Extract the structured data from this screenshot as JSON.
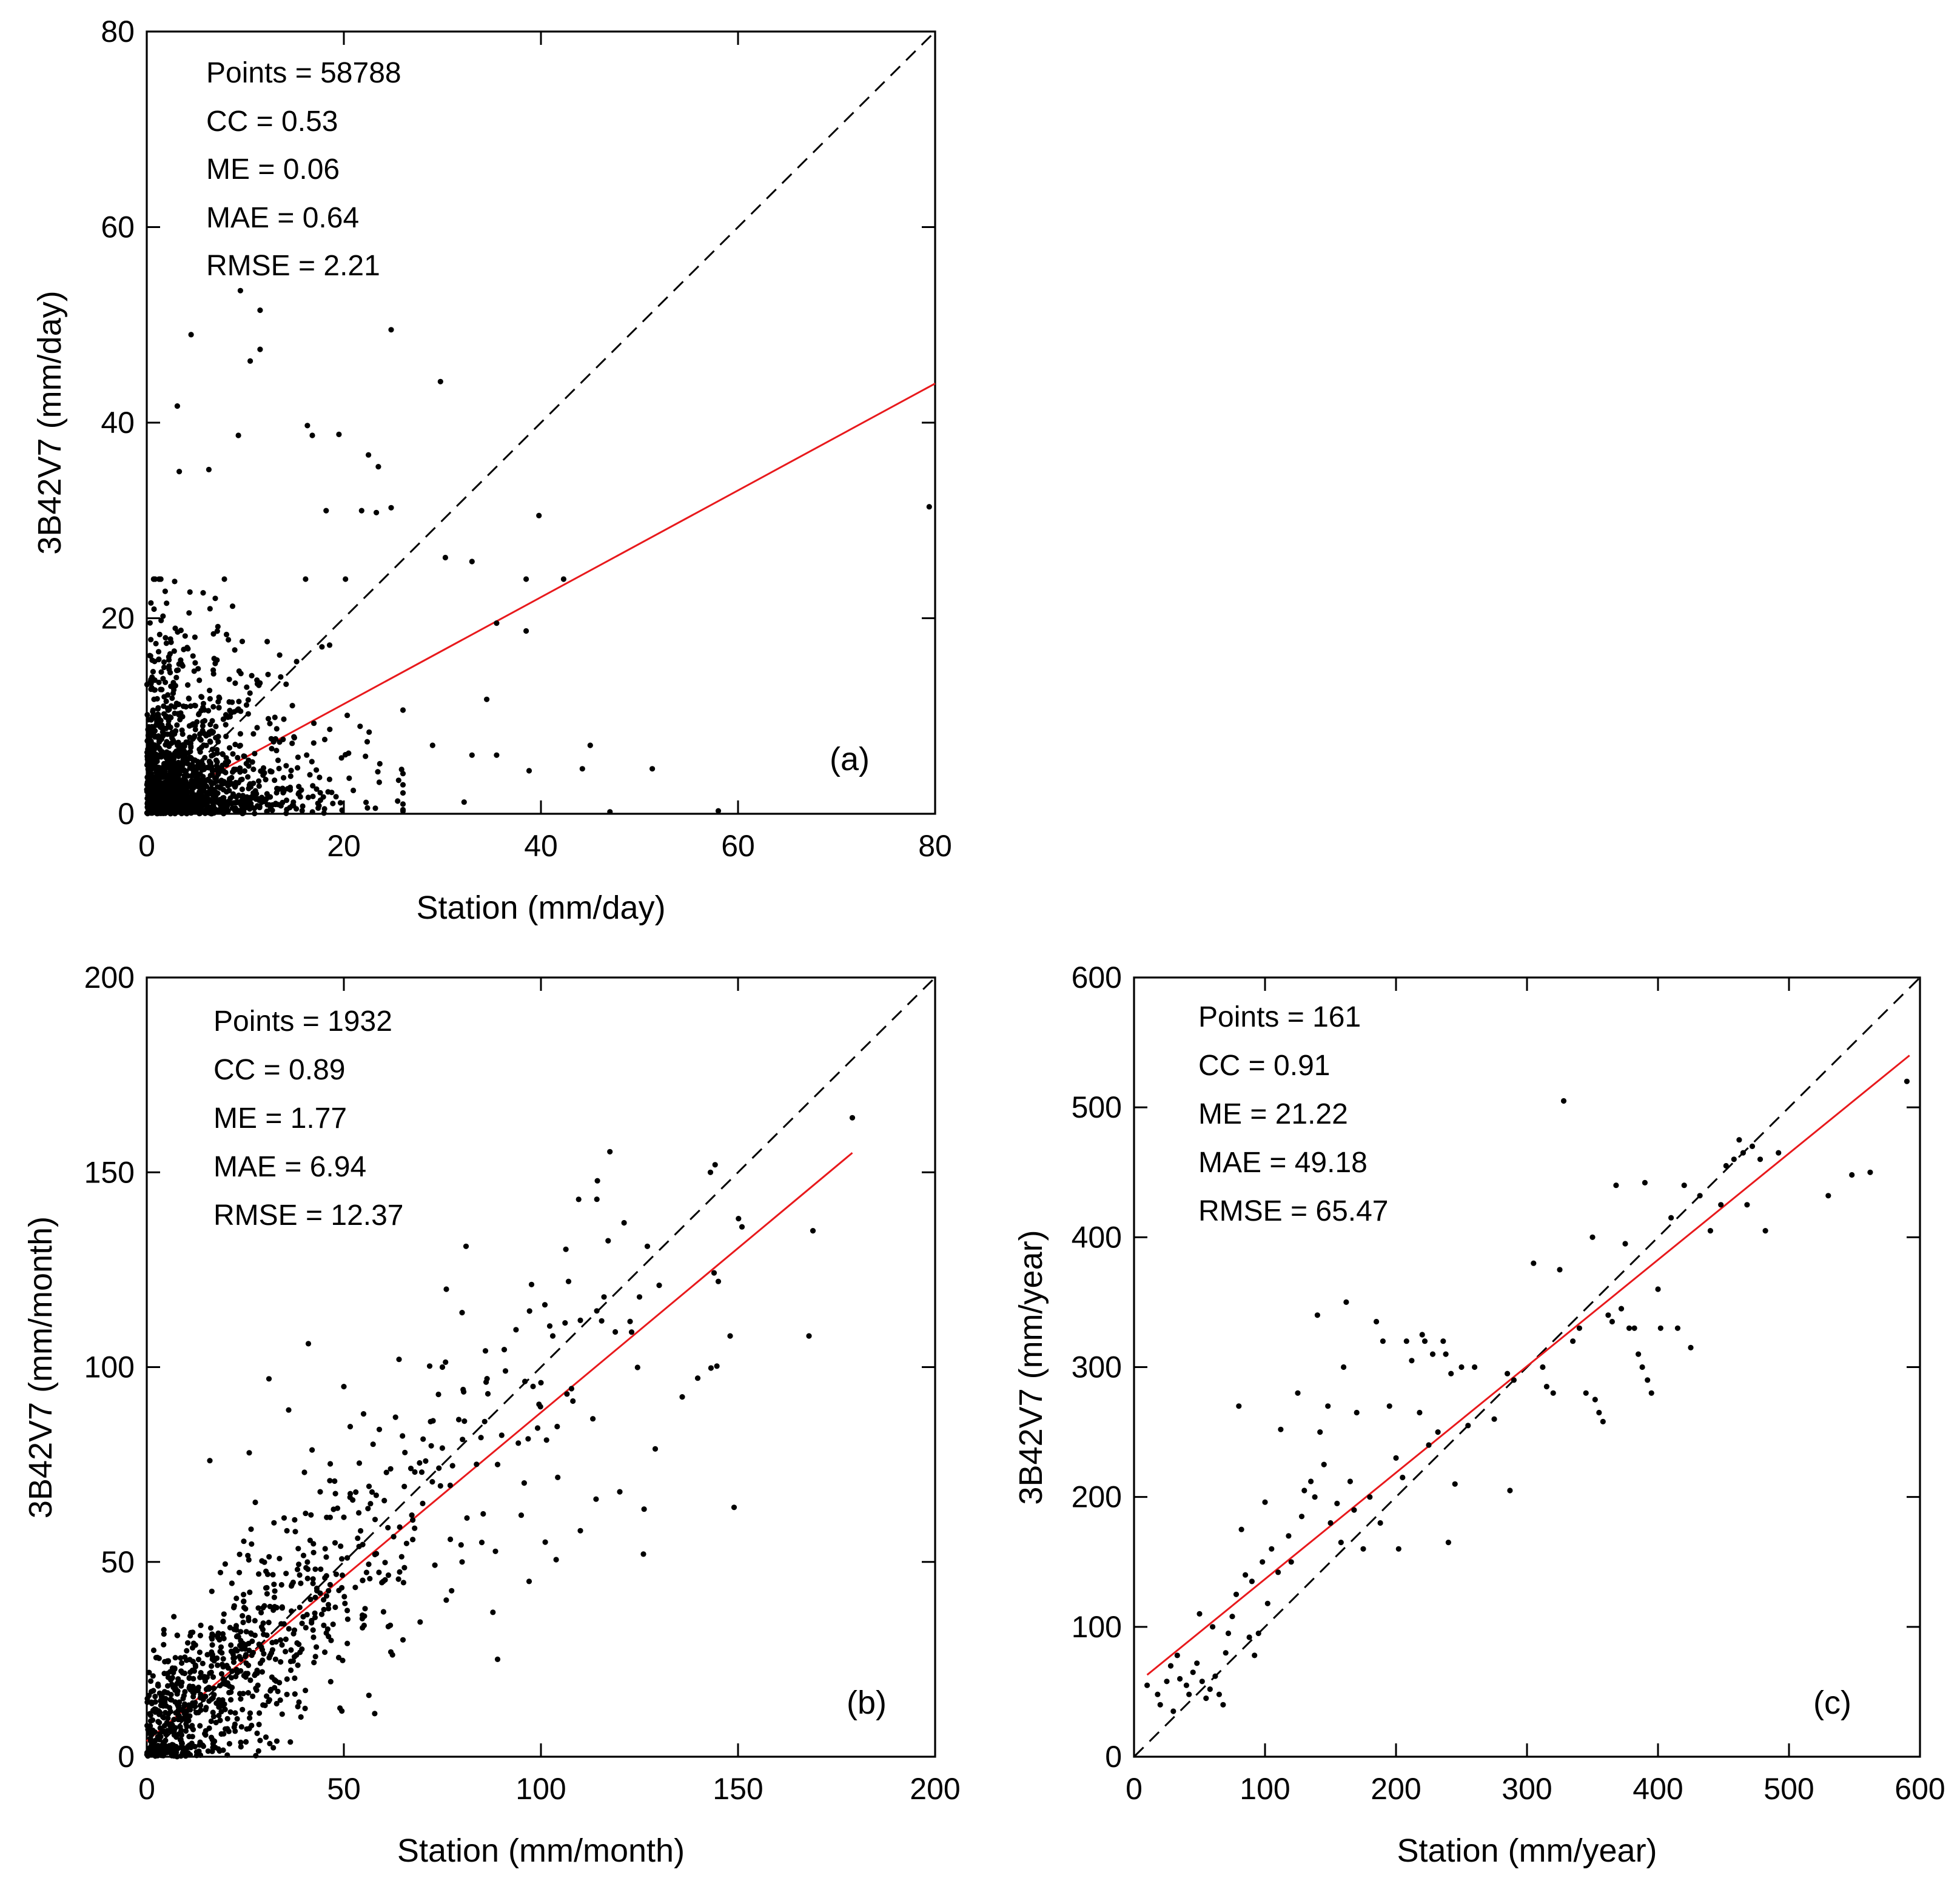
{
  "chart_data": [
    {
      "type": "scatter",
      "panel_label": "(a)",
      "xlabel": "Station (mm/day)",
      "ylabel": "3B42V7 (mm/day)",
      "xlim": [
        0,
        80
      ],
      "ylim": [
        0,
        80
      ],
      "xticks": [
        0,
        20,
        40,
        60,
        80
      ],
      "yticks": [
        0,
        20,
        40,
        60,
        80
      ],
      "stats": [
        "Points = 58788",
        "CC = 0.53",
        "ME = 0.06",
        "MAE = 0.64",
        "RMSE = 2.21"
      ],
      "one_to_one": [
        [
          0,
          0
        ],
        [
          80,
          80
        ]
      ],
      "fit_line": [
        [
          0,
          0.3
        ],
        [
          80,
          44
        ]
      ],
      "cluster": {
        "count": 1500,
        "x_scale": 5.5,
        "y_scale": 5.0,
        "x_max": 26,
        "y_max": 24
      },
      "points": [
        [
          9.5,
          53.5
        ],
        [
          11.5,
          51.5
        ],
        [
          11.5,
          47.5
        ],
        [
          10.5,
          46.3
        ],
        [
          4.5,
          49
        ],
        [
          24.8,
          49.5
        ],
        [
          29.8,
          44.2
        ],
        [
          3.1,
          41.7
        ],
        [
          16.3,
          39.7
        ],
        [
          16.8,
          38.7
        ],
        [
          9.3,
          38.7
        ],
        [
          19.5,
          38.8
        ],
        [
          22.5,
          36.7
        ],
        [
          23.5,
          35.5
        ],
        [
          24.8,
          31.3
        ],
        [
          3.3,
          35
        ],
        [
          6.3,
          35.2
        ],
        [
          21.8,
          31
        ],
        [
          23.3,
          30.8
        ],
        [
          18.2,
          31
        ],
        [
          30.3,
          26.2
        ],
        [
          33,
          25.8
        ],
        [
          39.8,
          30.5
        ],
        [
          42.3,
          24
        ],
        [
          38.5,
          24
        ],
        [
          35.5,
          19.5
        ],
        [
          38.5,
          18.7
        ],
        [
          34.5,
          11.7
        ],
        [
          33,
          6
        ],
        [
          35.5,
          6
        ],
        [
          38.8,
          4.4
        ],
        [
          44.2,
          4.6
        ],
        [
          51.3,
          4.6
        ],
        [
          45,
          7
        ],
        [
          29,
          7
        ],
        [
          32.2,
          1.2
        ],
        [
          79.4,
          31.4
        ],
        [
          58,
          0.3
        ],
        [
          47,
          0.2
        ]
      ]
    },
    {
      "type": "scatter",
      "panel_label": "(b)",
      "xlabel": "Station (mm/month)",
      "ylabel": "3B42V7 (mm/month)",
      "xlim": [
        0,
        200
      ],
      "ylim": [
        0,
        200
      ],
      "xticks": [
        0,
        50,
        100,
        150,
        200
      ],
      "yticks": [
        0,
        50,
        100,
        150,
        200
      ],
      "stats": [
        "Points = 1932",
        "CC = 0.89",
        "ME = 1.77",
        "MAE = 6.94",
        "RMSE = 12.37"
      ],
      "one_to_one": [
        [
          0,
          0
        ],
        [
          200,
          200
        ]
      ],
      "fit_line": [
        [
          0,
          4
        ],
        [
          179,
          155
        ]
      ],
      "cluster": {
        "count": 900,
        "x_scale": 30,
        "slope": 0.85,
        "noise": 12
      },
      "points": [
        [
          179,
          164
        ],
        [
          143,
          150
        ],
        [
          151,
          136
        ],
        [
          169,
          135
        ],
        [
          168,
          108
        ],
        [
          148,
          108
        ],
        [
          149,
          64
        ],
        [
          145,
          122
        ],
        [
          127,
          131
        ],
        [
          130,
          121
        ],
        [
          126,
          52
        ],
        [
          129,
          79
        ],
        [
          125,
          118
        ],
        [
          116,
          118
        ],
        [
          123,
          109
        ],
        [
          107,
          122
        ],
        [
          110,
          112
        ],
        [
          101,
          116
        ],
        [
          103,
          108
        ],
        [
          100,
          96
        ],
        [
          81,
          131
        ],
        [
          80,
          114
        ],
        [
          76,
          120
        ],
        [
          91,
          99
        ],
        [
          89,
          75
        ],
        [
          97,
          45
        ],
        [
          89,
          25
        ],
        [
          75,
          100
        ],
        [
          72,
          86
        ],
        [
          74,
          93
        ],
        [
          41,
          106
        ],
        [
          31,
          97
        ],
        [
          50,
          95
        ],
        [
          55,
          88
        ],
        [
          64,
          102
        ],
        [
          59,
          84
        ],
        [
          36,
          89
        ],
        [
          40,
          73
        ],
        [
          26,
          78
        ],
        [
          16,
          76
        ],
        [
          44,
          68
        ],
        [
          67,
          74
        ],
        [
          70,
          65
        ],
        [
          65,
          30
        ],
        [
          85,
          55
        ],
        [
          95,
          62
        ],
        [
          110,
          58
        ],
        [
          120,
          68
        ],
        [
          80,
          50
        ],
        [
          60,
          45
        ],
        [
          33,
          4
        ],
        [
          28,
          6
        ]
      ]
    },
    {
      "type": "scatter",
      "panel_label": "(c)",
      "xlabel": "Station (mm/year)",
      "ylabel": "3B42V7 (mm/year)",
      "xlim": [
        0,
        600
      ],
      "ylim": [
        0,
        600
      ],
      "xticks": [
        0,
        100,
        200,
        300,
        400,
        500,
        600
      ],
      "yticks": [
        0,
        100,
        200,
        300,
        400,
        500,
        600
      ],
      "stats": [
        "Points = 161",
        "CC = 0.91",
        "ME = 21.22",
        "MAE = 49.18",
        "RMSE = 65.47"
      ],
      "one_to_one": [
        [
          0,
          0
        ],
        [
          600,
          600
        ]
      ],
      "fit_line": [
        [
          10,
          63
        ],
        [
          592,
          540
        ]
      ],
      "points": [
        [
          10,
          55
        ],
        [
          18,
          48
        ],
        [
          20,
          40
        ],
        [
          25,
          58
        ],
        [
          28,
          70
        ],
        [
          30,
          35
        ],
        [
          33,
          78
        ],
        [
          35,
          60
        ],
        [
          40,
          55
        ],
        [
          42,
          48
        ],
        [
          45,
          65
        ],
        [
          48,
          72
        ],
        [
          50,
          110
        ],
        [
          52,
          58
        ],
        [
          55,
          45
        ],
        [
          58,
          52
        ],
        [
          60,
          100
        ],
        [
          62,
          62
        ],
        [
          65,
          48
        ],
        [
          68,
          40
        ],
        [
          70,
          80
        ],
        [
          72,
          95
        ],
        [
          75,
          108
        ],
        [
          78,
          125
        ],
        [
          80,
          270
        ],
        [
          82,
          175
        ],
        [
          85,
          140
        ],
        [
          88,
          92
        ],
        [
          90,
          135
        ],
        [
          92,
          78
        ],
        [
          95,
          95
        ],
        [
          98,
          150
        ],
        [
          100,
          196
        ],
        [
          102,
          118
        ],
        [
          105,
          160
        ],
        [
          110,
          142
        ],
        [
          112,
          252
        ],
        [
          118,
          170
        ],
        [
          120,
          150
        ],
        [
          125,
          280
        ],
        [
          128,
          185
        ],
        [
          130,
          205
        ],
        [
          135,
          212
        ],
        [
          138,
          200
        ],
        [
          140,
          340
        ],
        [
          142,
          250
        ],
        [
          145,
          225
        ],
        [
          148,
          270
        ],
        [
          150,
          180
        ],
        [
          155,
          195
        ],
        [
          158,
          165
        ],
        [
          160,
          300
        ],
        [
          162,
          350
        ],
        [
          165,
          212
        ],
        [
          168,
          190
        ],
        [
          170,
          265
        ],
        [
          175,
          160
        ],
        [
          180,
          200
        ],
        [
          185,
          335
        ],
        [
          188,
          180
        ],
        [
          190,
          320
        ],
        [
          195,
          270
        ],
        [
          200,
          230
        ],
        [
          202,
          160
        ],
        [
          205,
          215
        ],
        [
          208,
          320
        ],
        [
          212,
          305
        ],
        [
          218,
          265
        ],
        [
          220,
          325
        ],
        [
          222,
          320
        ],
        [
          225,
          240
        ],
        [
          228,
          310
        ],
        [
          232,
          250
        ],
        [
          236,
          320
        ],
        [
          238,
          310
        ],
        [
          240,
          165
        ],
        [
          242,
          295
        ],
        [
          245,
          210
        ],
        [
          250,
          300
        ],
        [
          255,
          255
        ],
        [
          260,
          300
        ],
        [
          275,
          260
        ],
        [
          285,
          295
        ],
        [
          287,
          205
        ],
        [
          290,
          290
        ],
        [
          305,
          380
        ],
        [
          312,
          300
        ],
        [
          315,
          285
        ],
        [
          320,
          280
        ],
        [
          325,
          375
        ],
        [
          328,
          505
        ],
        [
          335,
          320
        ],
        [
          340,
          330
        ],
        [
          345,
          280
        ],
        [
          350,
          400
        ],
        [
          352,
          275
        ],
        [
          355,
          265
        ],
        [
          358,
          258
        ],
        [
          362,
          340
        ],
        [
          365,
          335
        ],
        [
          368,
          440
        ],
        [
          372,
          345
        ],
        [
          375,
          395
        ],
        [
          378,
          330
        ],
        [
          382,
          330
        ],
        [
          385,
          310
        ],
        [
          388,
          300
        ],
        [
          390,
          442
        ],
        [
          392,
          290
        ],
        [
          395,
          280
        ],
        [
          400,
          360
        ],
        [
          402,
          330
        ],
        [
          410,
          415
        ],
        [
          415,
          330
        ],
        [
          420,
          440
        ],
        [
          425,
          315
        ],
        [
          432,
          432
        ],
        [
          440,
          405
        ],
        [
          448,
          425
        ],
        [
          452,
          455
        ],
        [
          458,
          460
        ],
        [
          462,
          475
        ],
        [
          465,
          465
        ],
        [
          468,
          425
        ],
        [
          472,
          470
        ],
        [
          478,
          460
        ],
        [
          482,
          405
        ],
        [
          492,
          465
        ],
        [
          530,
          432
        ],
        [
          548,
          448
        ],
        [
          562,
          450
        ],
        [
          590,
          520
        ]
      ]
    }
  ]
}
